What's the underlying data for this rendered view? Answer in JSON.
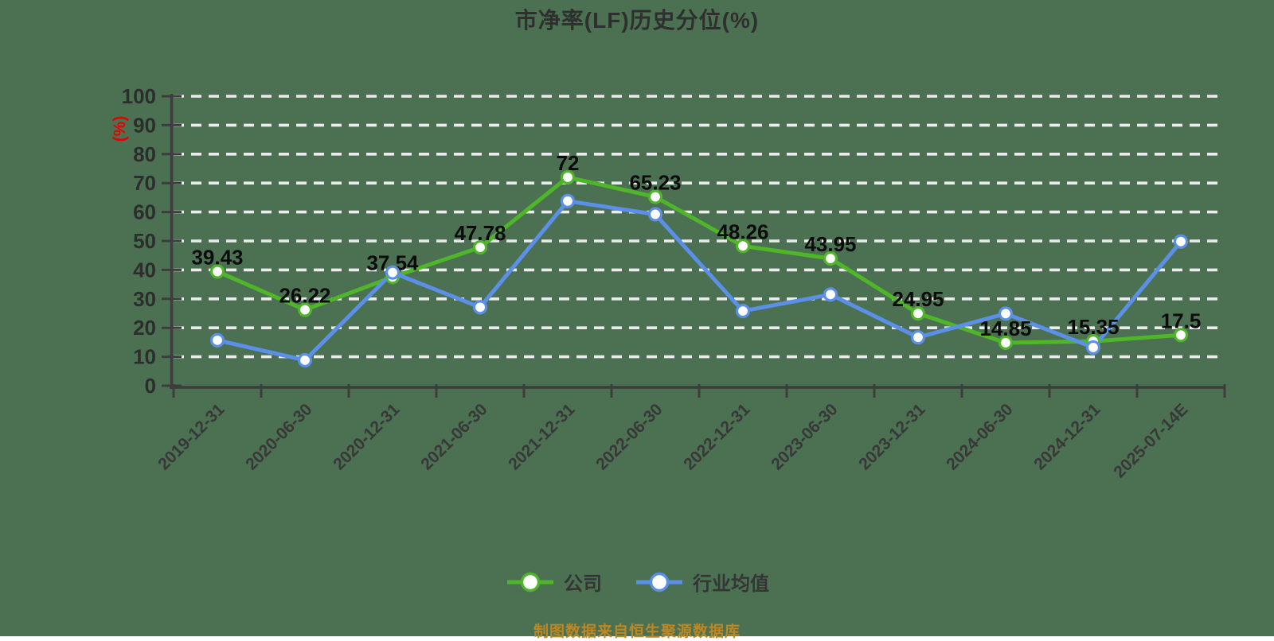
{
  "title": "市净率(LF)历史分位(%)",
  "footer": {
    "source_note": "制图数据来自恒生聚源数据库"
  },
  "colors": {
    "background": "#4b7152",
    "title": "#2f2f2f",
    "axis": "#3d3d3d",
    "grid": "#ececec",
    "tick_label": "#2d2d2d",
    "data_label": "#0b0b0b",
    "y_unit_label": "#e60000",
    "company_series": "#4fb529",
    "industry_series": "#5b8fe8",
    "source_note": "#bd8723"
  },
  "chart_data": {
    "type": "line",
    "title": "市净率(LF)历史分位(%)",
    "xlabel": "",
    "ylabel": "(%)",
    "ylim": [
      0,
      100
    ],
    "y_ticks": [
      0,
      10,
      20,
      30,
      40,
      50,
      60,
      70,
      80,
      90,
      100
    ],
    "grid": true,
    "grid_style": "dashed",
    "legend_position": "bottom",
    "categories": [
      "2019-12-31",
      "2020-06-30",
      "2020-12-31",
      "2021-06-30",
      "2021-12-31",
      "2022-06-30",
      "2022-12-31",
      "2023-06-30",
      "2023-12-31",
      "2024-06-30",
      "2024-12-31",
      "2025-07-14E"
    ],
    "series": [
      {
        "name": "公司",
        "color": "#4fb529",
        "values": [
          39.43,
          26.22,
          37.54,
          47.78,
          72,
          65.23,
          48.26,
          43.95,
          24.95,
          14.85,
          15.35,
          17.5
        ],
        "data_labels": [
          "39.43",
          "26.22",
          "37.54",
          "47.78",
          "72",
          "65.23",
          "48.26",
          "43.95",
          "24.95",
          "14.85",
          "15.35",
          "17.5"
        ]
      },
      {
        "name": "行业均值",
        "color": "#5b8fe8",
        "values": [
          15.7,
          8.8,
          39.1,
          27.1,
          63.8,
          59.2,
          25.8,
          31.5,
          16.7,
          24.9,
          13.2,
          49.8
        ]
      }
    ]
  }
}
